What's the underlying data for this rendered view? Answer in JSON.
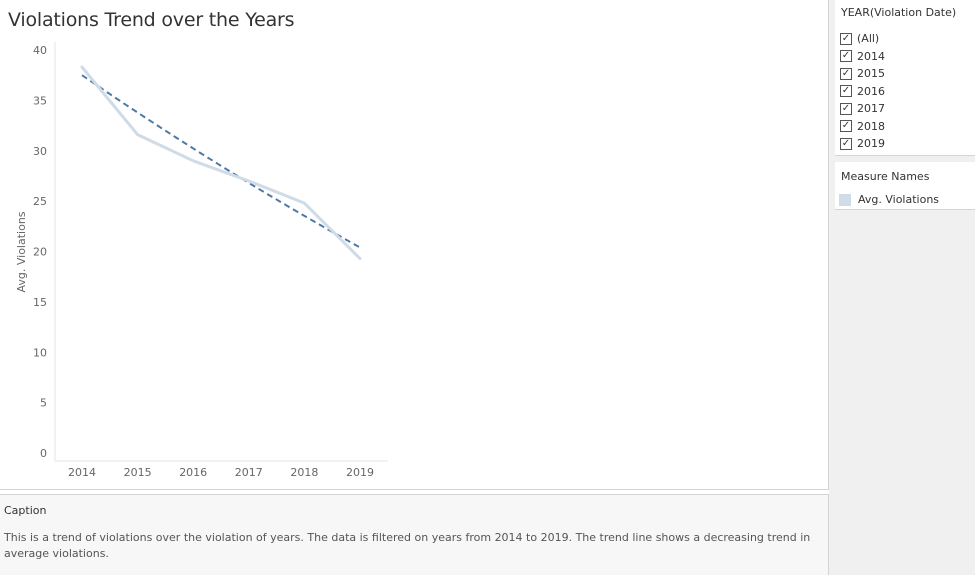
{
  "chart_data": {
    "type": "line",
    "title": "Violations Trend over the Years",
    "xlabel": "",
    "ylabel": "Avg. Violations",
    "x": [
      "2014",
      "2015",
      "2016",
      "2017",
      "2018",
      "2019"
    ],
    "series": [
      {
        "name": "Avg. Violations",
        "values": [
          38.3,
          31.6,
          29.0,
          27.0,
          24.8,
          19.3
        ],
        "color": "#cfdbe6"
      }
    ],
    "trend_line": {
      "start": 37.5,
      "end": 20.4,
      "style": "dashed",
      "color": "#4e79a7"
    },
    "ylim": [
      0,
      40
    ],
    "yticks": [
      0,
      5,
      10,
      15,
      20,
      25,
      30,
      35,
      40
    ],
    "grid": false,
    "legend": "right"
  },
  "filter": {
    "title": "YEAR(Violation Date)",
    "options": [
      {
        "label": "(All)",
        "checked": true
      },
      {
        "label": "2014",
        "checked": true
      },
      {
        "label": "2015",
        "checked": true
      },
      {
        "label": "2016",
        "checked": true
      },
      {
        "label": "2017",
        "checked": true
      },
      {
        "label": "2018",
        "checked": true
      },
      {
        "label": "2019",
        "checked": true
      }
    ],
    "check_glyph": "✓"
  },
  "legend": {
    "title": "Measure Names",
    "items": [
      {
        "label": "Avg. Violations",
        "color": "#cfdbe6"
      }
    ]
  },
  "caption": {
    "title": "Caption",
    "text": "This is a trend of violations over the violation of years. The data is filtered on years from 2014 to 2019. The trend line shows a decreasing trend in average violations."
  }
}
